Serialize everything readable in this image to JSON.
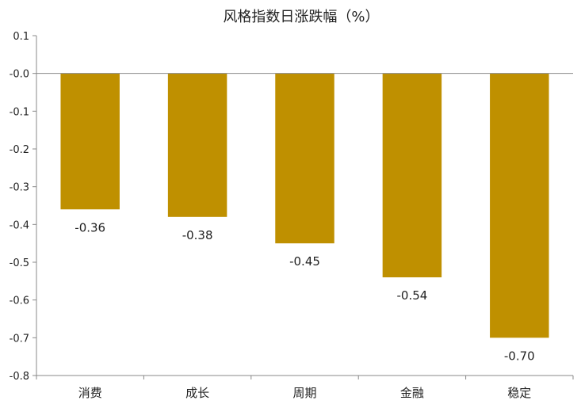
{
  "chart_data": {
    "type": "bar",
    "title": "风格指数日涨跌幅（%）",
    "xlabel": "",
    "ylabel": "",
    "categories": [
      "消费",
      "成长",
      "周期",
      "金融",
      "稳定"
    ],
    "values": [
      -0.36,
      -0.38,
      -0.45,
      -0.54,
      -0.7
    ],
    "data_labels": [
      "-0.36",
      "-0.38",
      "-0.45",
      "-0.54",
      "-0.70"
    ],
    "ylim": [
      -0.8,
      0.1
    ],
    "yticks": [
      0.1,
      0.0,
      -0.1,
      -0.2,
      -0.3,
      -0.4,
      -0.5,
      -0.6,
      -0.7,
      -0.8
    ],
    "ytick_labels": [
      "0.1",
      "-0.0",
      "-0.1",
      "-0.2",
      "-0.3",
      "-0.4",
      "-0.5",
      "-0.6",
      "-0.7",
      "-0.8"
    ],
    "bar_color": "#BF9000",
    "grid": false,
    "legend": "none"
  }
}
